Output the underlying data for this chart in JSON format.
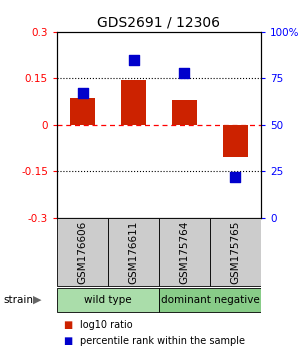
{
  "title": "GDS2691 / 12306",
  "samples": [
    "GSM176606",
    "GSM176611",
    "GSM175764",
    "GSM175765"
  ],
  "log10_ratio": [
    0.085,
    0.145,
    0.08,
    -0.105
  ],
  "percentile_rank": [
    67,
    85,
    78,
    22
  ],
  "groups": [
    {
      "label": "wild type",
      "samples": [
        0,
        1
      ],
      "color": "#aaddaa"
    },
    {
      "label": "dominant negative",
      "samples": [
        2,
        3
      ],
      "color": "#88cc88"
    }
  ],
  "ylim_left": [
    -0.3,
    0.3
  ],
  "ylim_right": [
    0,
    100
  ],
  "yticks_left": [
    -0.3,
    -0.15,
    0,
    0.15,
    0.3
  ],
  "yticks_right": [
    0,
    25,
    50,
    75,
    100
  ],
  "ytick_labels_left": [
    "-0.3",
    "-0.15",
    "0",
    "0.15",
    "0.3"
  ],
  "ytick_labels_right": [
    "0",
    "25",
    "50",
    "75",
    "100%"
  ],
  "bar_color": "#cc2200",
  "dot_color": "#0000cc",
  "bar_width": 0.5,
  "dot_size": 55,
  "legend_items": [
    {
      "color": "#cc2200",
      "label": "log10 ratio"
    },
    {
      "color": "#0000cc",
      "label": "percentile rank within the sample"
    }
  ],
  "sample_box_color": "#cccccc",
  "bg_color": "#ffffff"
}
